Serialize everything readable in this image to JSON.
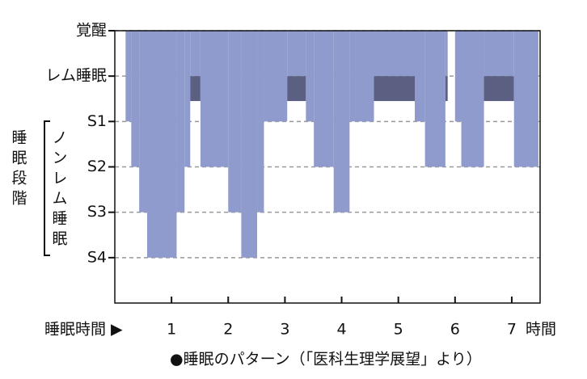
{
  "chart_data": {
    "type": "hypnogram",
    "xlabel": "睡眠時間 ▶",
    "x_unit_label": "時間",
    "group_label": "睡眠段階",
    "bracket_label": "ノンレム睡眠",
    "source": "●睡眠のパターン（「医科生理学展望」より）",
    "x": [
      0,
      0.19,
      0.29,
      0.43,
      0.57,
      1.09,
      1.23,
      1.33,
      1.51,
      2.0,
      2.23,
      2.51,
      2.63,
      3.04,
      3.37,
      3.51,
      3.86,
      4.14,
      4.57,
      5.29,
      5.47,
      5.83,
      5.87,
      6.0,
      6.11,
      6.51,
      7.04,
      7.47
    ],
    "values": [
      0,
      2,
      3,
      4,
      5,
      4,
      3,
      1,
      3,
      4,
      5,
      4,
      2,
      1,
      2,
      3,
      4,
      2,
      1,
      2,
      3,
      1,
      0,
      2,
      3,
      1,
      3,
      null
    ],
    "color": "#8f9bcc",
    "rem_color": "#5b5f82",
    "xlim": [
      0,
      7.5
    ],
    "xticks": [
      1,
      2,
      3,
      4,
      5,
      6,
      7
    ],
    "ylim": [
      6,
      0
    ],
    "yticks": [
      {
        "value": 0,
        "label": "覚醒"
      },
      {
        "value": 1,
        "label": "レム睡眠"
      },
      {
        "value": 2,
        "label": "S1"
      },
      {
        "value": 3,
        "label": "S2"
      },
      {
        "value": 4,
        "label": "S3"
      },
      {
        "value": 5,
        "label": "S4"
      }
    ],
    "grid": true
  }
}
